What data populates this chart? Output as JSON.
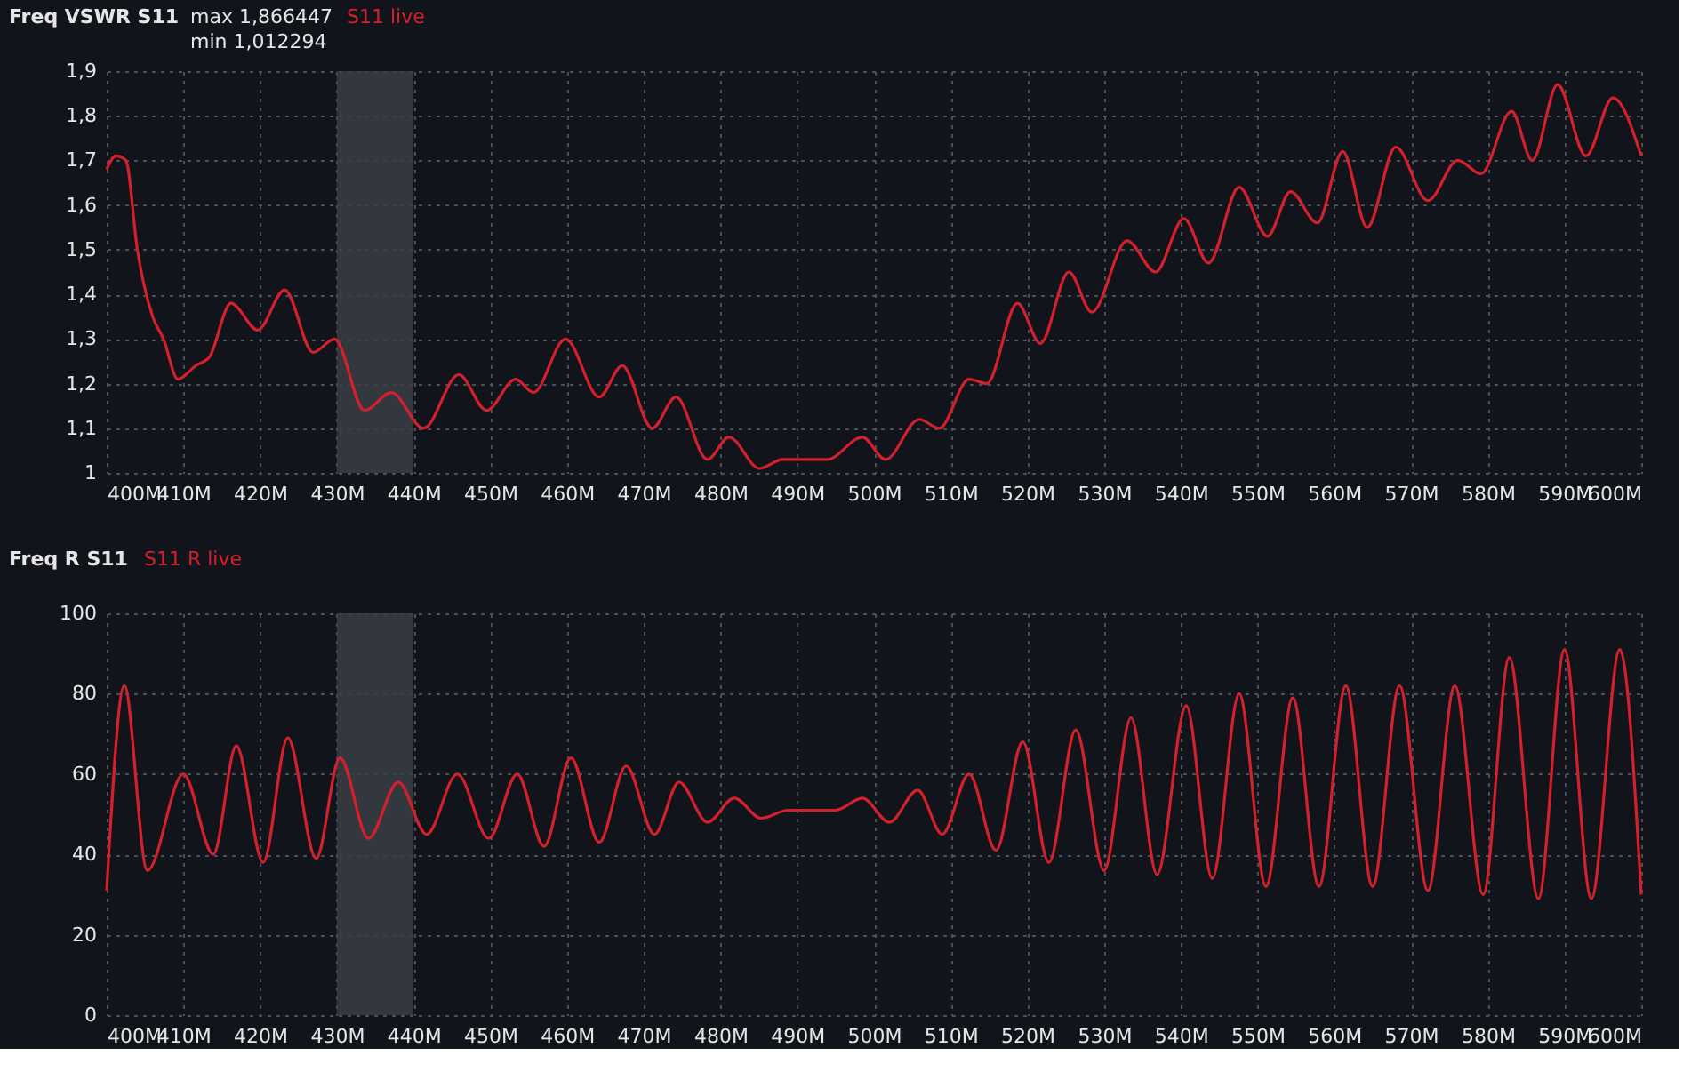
{
  "chart_data": [
    {
      "type": "line",
      "title": "Freq VSWR S11",
      "annotations": [
        "max 1,866447",
        "min 1,012294"
      ],
      "series": [
        {
          "name": "S11 live",
          "color": "#d4202c",
          "x": [
            400,
            401.2,
            402.5,
            404,
            406,
            407.4,
            409.3,
            411.6,
            413.4,
            416.2,
            419.7,
            423.2,
            426.9,
            429.7,
            433.6,
            437.1,
            441.3,
            445.9,
            449.5,
            453.3,
            455.6,
            459.8,
            464.2,
            467.2,
            471.1,
            474.2,
            478.3,
            481.1,
            485.1,
            488.1,
            493.9,
            498.5,
            501.5,
            505.9,
            508.5,
            512.4,
            514.7,
            518.7,
            521.7,
            525.4,
            528.4,
            533.0,
            536.7,
            540.4,
            543.6,
            547.6,
            551.3,
            554.3,
            557.8,
            561.1,
            564.3,
            568.0,
            572.2,
            576.1,
            579.1,
            583.1,
            585.8,
            589.1,
            592.8,
            596.3,
            600
          ],
          "values": [
            1.68,
            1.71,
            1.7,
            1.5,
            1.35,
            1.3,
            1.21,
            1.24,
            1.26,
            1.38,
            1.32,
            1.41,
            1.27,
            1.3,
            1.14,
            1.18,
            1.1,
            1.22,
            1.14,
            1.21,
            1.18,
            1.3,
            1.17,
            1.24,
            1.1,
            1.17,
            1.03,
            1.08,
            1.01,
            1.03,
            1.03,
            1.08,
            1.03,
            1.12,
            1.1,
            1.21,
            1.2,
            1.38,
            1.29,
            1.45,
            1.36,
            1.52,
            1.45,
            1.57,
            1.47,
            1.64,
            1.53,
            1.63,
            1.56,
            1.72,
            1.55,
            1.73,
            1.61,
            1.7,
            1.67,
            1.81,
            1.7,
            1.87,
            1.71,
            1.84,
            1.71
          ]
        }
      ],
      "xlim": [
        400,
        600
      ],
      "xticks": [
        {
          "value": 400,
          "label": "400M"
        },
        {
          "value": 410,
          "label": "410M"
        },
        {
          "value": 420,
          "label": "420M"
        },
        {
          "value": 430,
          "label": "430M"
        },
        {
          "value": 440,
          "label": "440M"
        },
        {
          "value": 450,
          "label": "450M"
        },
        {
          "value": 460,
          "label": "460M"
        },
        {
          "value": 470,
          "label": "470M"
        },
        {
          "value": 480,
          "label": "480M"
        },
        {
          "value": 490,
          "label": "490M"
        },
        {
          "value": 500,
          "label": "500M"
        },
        {
          "value": 510,
          "label": "510M"
        },
        {
          "value": 520,
          "label": "520M"
        },
        {
          "value": 530,
          "label": "530M"
        },
        {
          "value": 540,
          "label": "540M"
        },
        {
          "value": 550,
          "label": "550M"
        },
        {
          "value": 560,
          "label": "560M"
        },
        {
          "value": 570,
          "label": "570M"
        },
        {
          "value": 580,
          "label": "580M"
        },
        {
          "value": 590,
          "label": "590M"
        },
        {
          "value": 600,
          "label": "600M"
        }
      ],
      "ylim": [
        1,
        1.9
      ],
      "yticks": [
        1,
        {
          "value": 1.1,
          "label": "1,1"
        },
        {
          "value": 1.2,
          "label": "1,2"
        },
        {
          "value": 1.3,
          "label": "1,3"
        },
        {
          "value": 1.4,
          "label": "1,4"
        },
        {
          "value": 1.5,
          "label": "1,5"
        },
        {
          "value": 1.6,
          "label": "1,6"
        },
        {
          "value": 1.7,
          "label": "1,7"
        },
        {
          "value": 1.8,
          "label": "1,8"
        },
        {
          "value": 1.9,
          "label": "1,9"
        }
      ],
      "bands": [
        {
          "axis": "x",
          "from": 430,
          "to": 440,
          "color": "#3a3d44"
        }
      ],
      "grid": true
    },
    {
      "type": "line",
      "title": "Freq R S11",
      "series": [
        {
          "name": "S11 R live",
          "color": "#d4202c",
          "x": [
            400,
            402.3,
            405.3,
            410,
            413.9,
            416.9,
            420.4,
            423.6,
            427.3,
            430.4,
            434.1,
            438,
            441.7,
            445.7,
            449.8,
            453.5,
            457,
            460.5,
            464.2,
            467.7,
            471.4,
            474.6,
            478.3,
            481.8,
            485.3,
            488.8,
            495,
            498.5,
            502,
            505.7,
            508.9,
            512.4,
            515.9,
            519.4,
            522.8,
            526.3,
            530,
            533.5,
            536.9,
            540.7,
            544.1,
            547.6,
            551.1,
            554.6,
            558,
            561.5,
            565,
            568.5,
            572.2,
            575.7,
            579.4,
            582.8,
            586.6,
            590,
            593.5,
            597.2,
            600
          ],
          "values": [
            31,
            82,
            36,
            60,
            40,
            67,
            38,
            69,
            39,
            64,
            44,
            58,
            45,
            60,
            44,
            60,
            42,
            64,
            43,
            62,
            45,
            58,
            48,
            54,
            49,
            51,
            51,
            54,
            48,
            56,
            45,
            60,
            41,
            68,
            38,
            71,
            36,
            74,
            35,
            77,
            34,
            80,
            32,
            79,
            32,
            82,
            32,
            82,
            31,
            82,
            30,
            89,
            29,
            91,
            29,
            91,
            30
          ]
        }
      ],
      "xlim": [
        400,
        600
      ],
      "xticks": [
        {
          "value": 400,
          "label": "400M"
        },
        {
          "value": 410,
          "label": "410M"
        },
        {
          "value": 420,
          "label": "420M"
        },
        {
          "value": 430,
          "label": "430M"
        },
        {
          "value": 440,
          "label": "440M"
        },
        {
          "value": 450,
          "label": "450M"
        },
        {
          "value": 460,
          "label": "460M"
        },
        {
          "value": 470,
          "label": "470M"
        },
        {
          "value": 480,
          "label": "480M"
        },
        {
          "value": 490,
          "label": "490M"
        },
        {
          "value": 500,
          "label": "500M"
        },
        {
          "value": 510,
          "label": "510M"
        },
        {
          "value": 520,
          "label": "520M"
        },
        {
          "value": 530,
          "label": "530M"
        },
        {
          "value": 540,
          "label": "540M"
        },
        {
          "value": 550,
          "label": "550M"
        },
        {
          "value": 560,
          "label": "560M"
        },
        {
          "value": 570,
          "label": "570M"
        },
        {
          "value": 580,
          "label": "580M"
        },
        {
          "value": 590,
          "label": "590M"
        },
        {
          "value": 600,
          "label": "600M"
        }
      ],
      "ylim": [
        0,
        100
      ],
      "yticks": [
        0,
        20,
        40,
        60,
        80,
        100
      ],
      "bands": [
        {
          "axis": "x",
          "from": 430,
          "to": 440,
          "color": "#3a3d44"
        }
      ],
      "grid": true
    }
  ]
}
